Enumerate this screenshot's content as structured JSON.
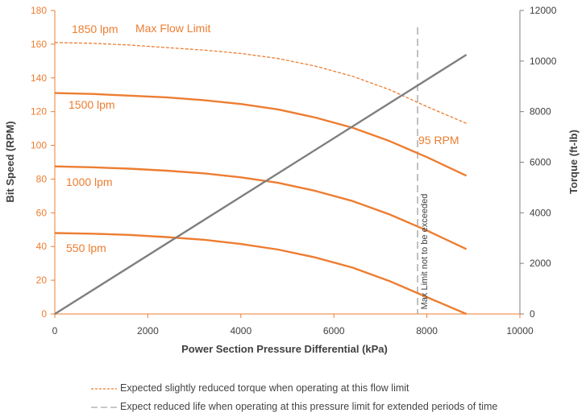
{
  "chart_data": {
    "type": "line",
    "xlabel": "Power Section Pressure Differential (kPa)",
    "ylabel": "Bit Speed (RPM)",
    "y2label": "Torque (ft-lb)",
    "xlim": [
      0,
      10000
    ],
    "ylim": [
      0,
      180
    ],
    "y2lim": [
      0,
      12000
    ],
    "x_ticks": [
      "0",
      "2000",
      "4000",
      "6000",
      "8000",
      "10000"
    ],
    "y_ticks": [
      "0",
      "20",
      "40",
      "60",
      "80",
      "100",
      "120",
      "140",
      "160",
      "180"
    ],
    "y2_ticks": [
      "0",
      "2000",
      "4000",
      "6000",
      "8000",
      "10000",
      "12000"
    ],
    "grid": false,
    "series": [
      {
        "name": "1850 lpm",
        "axis": "left",
        "style": "dashed",
        "color": "#ED7D31",
        "x": [
          0,
          800,
          1600,
          2400,
          3200,
          4000,
          4800,
          5600,
          6400,
          7200,
          8000,
          8850
        ],
        "y": [
          161,
          160.5,
          159.5,
          158,
          156.5,
          154.5,
          151.5,
          147,
          141,
          133,
          123,
          113
        ]
      },
      {
        "name": "1500 lpm",
        "axis": "left",
        "style": "solid",
        "color": "#ED7D31",
        "x": [
          0,
          800,
          1600,
          2400,
          3200,
          4000,
          4800,
          5600,
          6400,
          7200,
          8000,
          8850
        ],
        "y": [
          131,
          130.5,
          129.5,
          128.5,
          126.8,
          124.5,
          121.3,
          116.5,
          110.5,
          102.5,
          93,
          82
        ]
      },
      {
        "name": "1000 lpm",
        "axis": "left",
        "style": "solid",
        "color": "#ED7D31",
        "x": [
          0,
          800,
          1600,
          2400,
          3200,
          4000,
          4800,
          5600,
          6400,
          7200,
          8000,
          8850
        ],
        "y": [
          87.5,
          87,
          86.2,
          85,
          83.4,
          81,
          77.8,
          73,
          67,
          59,
          49.5,
          38.5
        ]
      },
      {
        "name": "550 lpm",
        "axis": "left",
        "style": "solid",
        "color": "#ED7D31",
        "x": [
          0,
          800,
          1600,
          2400,
          3200,
          4000,
          4800,
          5600,
          6400,
          7200,
          8000,
          8850
        ],
        "y": [
          48,
          47.6,
          46.9,
          45.6,
          44,
          41.5,
          38.2,
          33.5,
          27.5,
          19.5,
          10,
          0
        ]
      },
      {
        "name": "Torque",
        "axis": "right",
        "style": "solid",
        "color": "#7F7F7F",
        "x": [
          0,
          8850
        ],
        "y": [
          0,
          10250
        ]
      }
    ],
    "vline": {
      "x": 7800,
      "label": "Max Limit not to be exceeded",
      "style": "dashed",
      "color": "#A6A6A6"
    },
    "annotations": [
      {
        "text": "1850 lpm"
      },
      {
        "text": "Max Flow Limit"
      },
      {
        "text": "1500 lpm"
      },
      {
        "text": "1000 lpm"
      },
      {
        "text": "550 lpm"
      },
      {
        "text": "95 RPM"
      }
    ],
    "legend": [
      {
        "text": "Expected slightly reduced torque when operating at this flow limit",
        "style": "dashed",
        "color": "#ED7D31"
      },
      {
        "text": "Expect reduced life when operating at this pressure limit for extended periods of time",
        "style": "dashed",
        "color": "#A6A6A6"
      }
    ],
    "legend_position": "bottom"
  }
}
